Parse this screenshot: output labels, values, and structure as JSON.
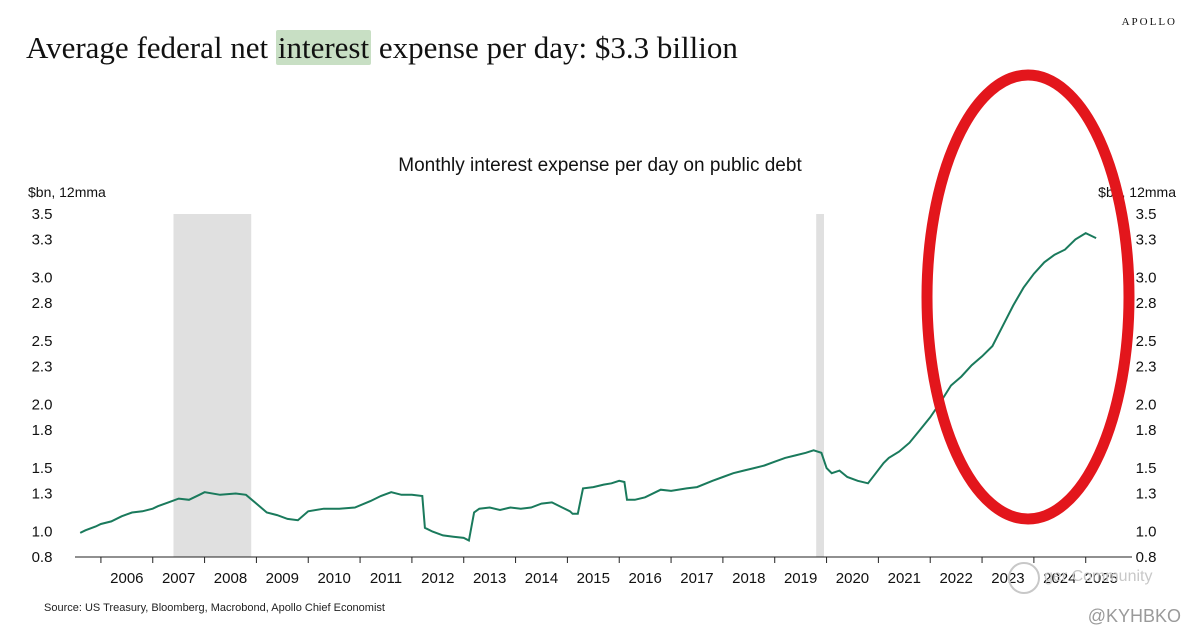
{
  "brand": "APOLLO",
  "headline": {
    "before": "Average federal net ",
    "highlight": "interest",
    "after": " expense per day: $3.3 billion"
  },
  "colors": {
    "line": "#1a7a5c",
    "recession": "#e0e0e0",
    "highlight": "#c8dfc4",
    "annotation": "#e3161c"
  },
  "chart_data": {
    "type": "line",
    "title": "Monthly interest expense per day on public debt",
    "ylabel_left": "$bn, 12mma",
    "ylabel_right": "$bn, 12mma",
    "xlim": [
      2005.5,
      2025.7
    ],
    "ylim": [
      0.8,
      3.5
    ],
    "y_ticks": [
      0.8,
      1.0,
      1.3,
      1.5,
      1.8,
      2.0,
      2.3,
      2.5,
      2.8,
      3.0,
      3.3,
      3.5
    ],
    "y_tick_labels": [
      "0.8",
      "1.0",
      "1.3",
      "1.5",
      "1.8",
      "2.0",
      "2.3",
      "2.5",
      "2.8",
      "3.0",
      "3.3",
      "3.5"
    ],
    "x_tick_labels": [
      "2006",
      "2007",
      "2008",
      "2009",
      "2010",
      "2011",
      "2012",
      "2013",
      "2014",
      "2015",
      "2016",
      "2017",
      "2018",
      "2019",
      "2020",
      "2021",
      "2022",
      "2023",
      "2024",
      "2025"
    ],
    "x_tick_positions": [
      2006.5,
      2007.5,
      2008.5,
      2009.5,
      2010.5,
      2011.5,
      2012.5,
      2013.5,
      2014.5,
      2015.5,
      2016.5,
      2017.5,
      2018.5,
      2019.5,
      2020.5,
      2021.5,
      2022.5,
      2023.5,
      2024.5,
      2025.3
    ],
    "recessions": [
      [
        2007.4,
        2008.9
      ],
      [
        2019.8,
        2019.95
      ]
    ],
    "series": [
      {
        "name": "Interest expense per day",
        "x": [
          2005.6,
          2005.7,
          2005.9,
          2006.0,
          2006.2,
          2006.4,
          2006.6,
          2006.8,
          2007.0,
          2007.1,
          2007.3,
          2007.5,
          2007.7,
          2007.9,
          2008.0,
          2008.3,
          2008.6,
          2008.8,
          2009.0,
          2009.2,
          2009.4,
          2009.6,
          2009.8,
          2010.0,
          2010.3,
          2010.6,
          2010.9,
          2011.2,
          2011.4,
          2011.6,
          2011.8,
          2012.0,
          2012.2,
          2012.25,
          2012.4,
          2012.6,
          2012.8,
          2013.0,
          2013.1,
          2013.2,
          2013.3,
          2013.5,
          2013.7,
          2013.9,
          2014.1,
          2014.3,
          2014.5,
          2014.7,
          2014.9,
          2015.05,
          2015.1,
          2015.2,
          2015.3,
          2015.5,
          2015.7,
          2015.85,
          2016.0,
          2016.1,
          2016.15,
          2016.3,
          2016.5,
          2016.8,
          2017.0,
          2017.3,
          2017.5,
          2017.8,
          2018.0,
          2018.2,
          2018.4,
          2018.6,
          2018.8,
          2019.0,
          2019.2,
          2019.4,
          2019.6,
          2019.75,
          2019.9,
          2020.0,
          2020.1,
          2020.25,
          2020.4,
          2020.6,
          2020.8,
          2020.95,
          2021.1,
          2021.2,
          2021.4,
          2021.6,
          2021.8,
          2022.0,
          2022.2,
          2022.4,
          2022.6,
          2022.8,
          2023.0,
          2023.2,
          2023.4,
          2023.6,
          2023.8,
          2024.0,
          2024.2,
          2024.4,
          2024.6,
          2024.8,
          2025.0,
          2025.1,
          2025.2
        ],
        "values": [
          0.99,
          1.01,
          1.04,
          1.06,
          1.08,
          1.12,
          1.15,
          1.16,
          1.18,
          1.2,
          1.23,
          1.26,
          1.25,
          1.29,
          1.31,
          1.29,
          1.3,
          1.29,
          1.22,
          1.15,
          1.13,
          1.1,
          1.09,
          1.16,
          1.18,
          1.18,
          1.19,
          1.24,
          1.28,
          1.31,
          1.29,
          1.29,
          1.28,
          1.03,
          1.0,
          0.97,
          0.96,
          0.95,
          0.93,
          1.15,
          1.18,
          1.19,
          1.17,
          1.19,
          1.18,
          1.19,
          1.22,
          1.23,
          1.19,
          1.16,
          1.14,
          1.14,
          1.34,
          1.35,
          1.37,
          1.38,
          1.4,
          1.39,
          1.25,
          1.25,
          1.27,
          1.33,
          1.32,
          1.34,
          1.35,
          1.4,
          1.43,
          1.46,
          1.48,
          1.5,
          1.52,
          1.55,
          1.58,
          1.6,
          1.62,
          1.64,
          1.62,
          1.5,
          1.46,
          1.48,
          1.43,
          1.4,
          1.38,
          1.46,
          1.54,
          1.58,
          1.63,
          1.7,
          1.8,
          1.9,
          2.02,
          2.15,
          2.22,
          2.31,
          2.38,
          2.46,
          2.62,
          2.78,
          2.92,
          3.03,
          3.12,
          3.18,
          3.22,
          3.3,
          3.35,
          3.33,
          3.31
        ]
      }
    ]
  },
  "source": "Source: US Treasury, Bloomberg, Macrobond, Apollo Chief Economist",
  "watermark": "ger Community",
  "handle": "@KYHBKO"
}
